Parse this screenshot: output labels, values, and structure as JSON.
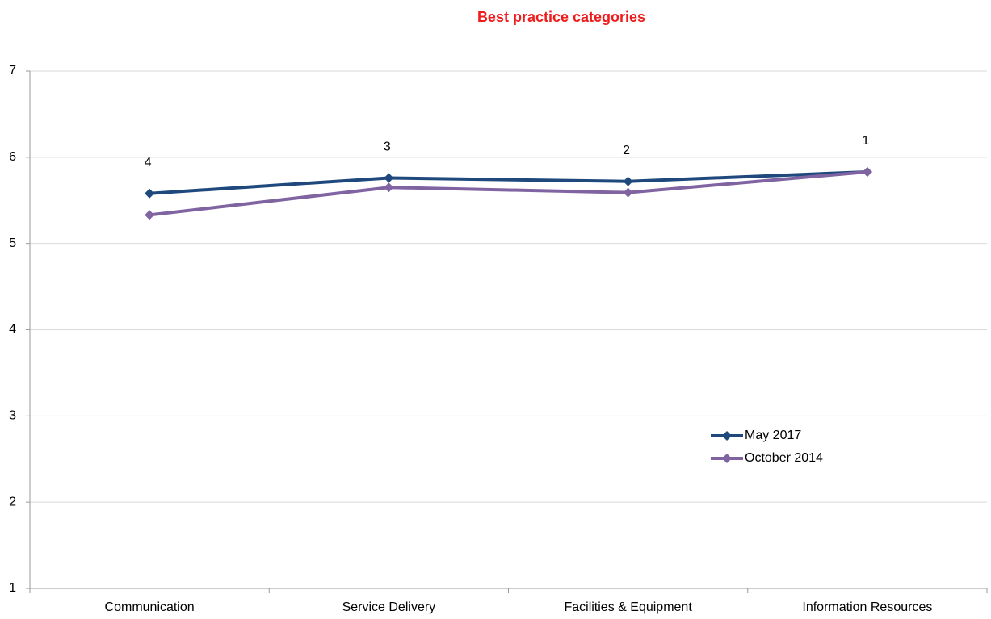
{
  "chart_data": {
    "type": "line",
    "title": "Best practice categories",
    "categories": [
      "Communication",
      "Service Delivery",
      "Facilities & Equipment",
      "Information Resources"
    ],
    "series": [
      {
        "name": "May 2017",
        "color": "#1f497d",
        "values": [
          5.58,
          5.76,
          5.72,
          5.83
        ]
      },
      {
        "name": "October 2014",
        "color": "#8064a2",
        "values": [
          5.33,
          5.65,
          5.59,
          5.83
        ]
      }
    ],
    "annotations": [
      "4",
      "3",
      "2",
      "1"
    ],
    "ylim": [
      1,
      7
    ],
    "yticks": [
      1,
      2,
      3,
      4,
      5,
      6,
      7
    ],
    "grid": true,
    "legend": "lower right"
  }
}
